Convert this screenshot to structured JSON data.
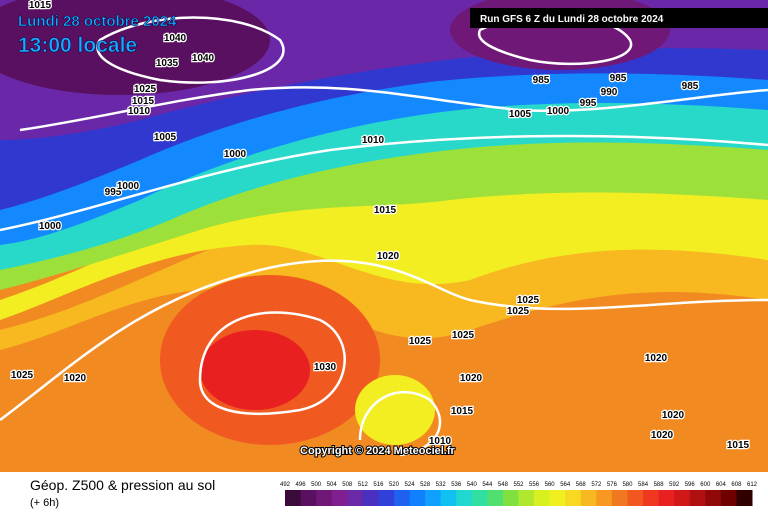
{
  "header": {
    "date": "Lundi 28 octobre 2024",
    "time": "13:00 locale",
    "run": "Run GFS 6 Z du Lundi 28 octobre 2024"
  },
  "isobar_labels": [
    "1015",
    "1040",
    "1035",
    "1040",
    "1025",
    "1015",
    "1010",
    "1005",
    "1000",
    "995",
    "1000",
    "1000",
    "1010",
    "1015",
    "1020",
    "1025",
    "1025",
    "1025",
    "1025",
    "1030",
    "1025",
    "1020",
    "1020",
    "1015",
    "1010",
    "1020",
    "1020",
    "1020",
    "1015",
    "985",
    "985",
    "990",
    "995",
    "1000",
    "1005",
    "985"
  ],
  "copyright": "Copyright © 2024 Meteociel.fr",
  "footer": {
    "title": "Géop. Z500 & pression au sol",
    "lead": "(+ 6h)"
  },
  "legend": {
    "labels": [
      "492",
      "496",
      "500",
      "504",
      "508",
      "512",
      "516",
      "520",
      "524",
      "528",
      "532",
      "536",
      "540",
      "544",
      "548",
      "552",
      "556",
      "560",
      "564",
      "568",
      "572",
      "576",
      "580",
      "584",
      "588",
      "592",
      "596",
      "600",
      "604",
      "608",
      "612"
    ],
    "colors": [
      "#3a0a3a",
      "#5a1060",
      "#701878",
      "#802090",
      "#6a2aa8",
      "#4a30c0",
      "#3040d8",
      "#2060f0",
      "#1080ff",
      "#10a0ff",
      "#10c0f0",
      "#20d8d0",
      "#30e0a0",
      "#50e070",
      "#80e040",
      "#b0e830",
      "#d8f020",
      "#f0f020",
      "#f8d820",
      "#f8b820",
      "#f89820",
      "#f07820",
      "#f05820",
      "#f03820",
      "#e82020",
      "#d01818",
      "#b01010",
      "#900808",
      "#700000",
      "#300000"
    ]
  }
}
